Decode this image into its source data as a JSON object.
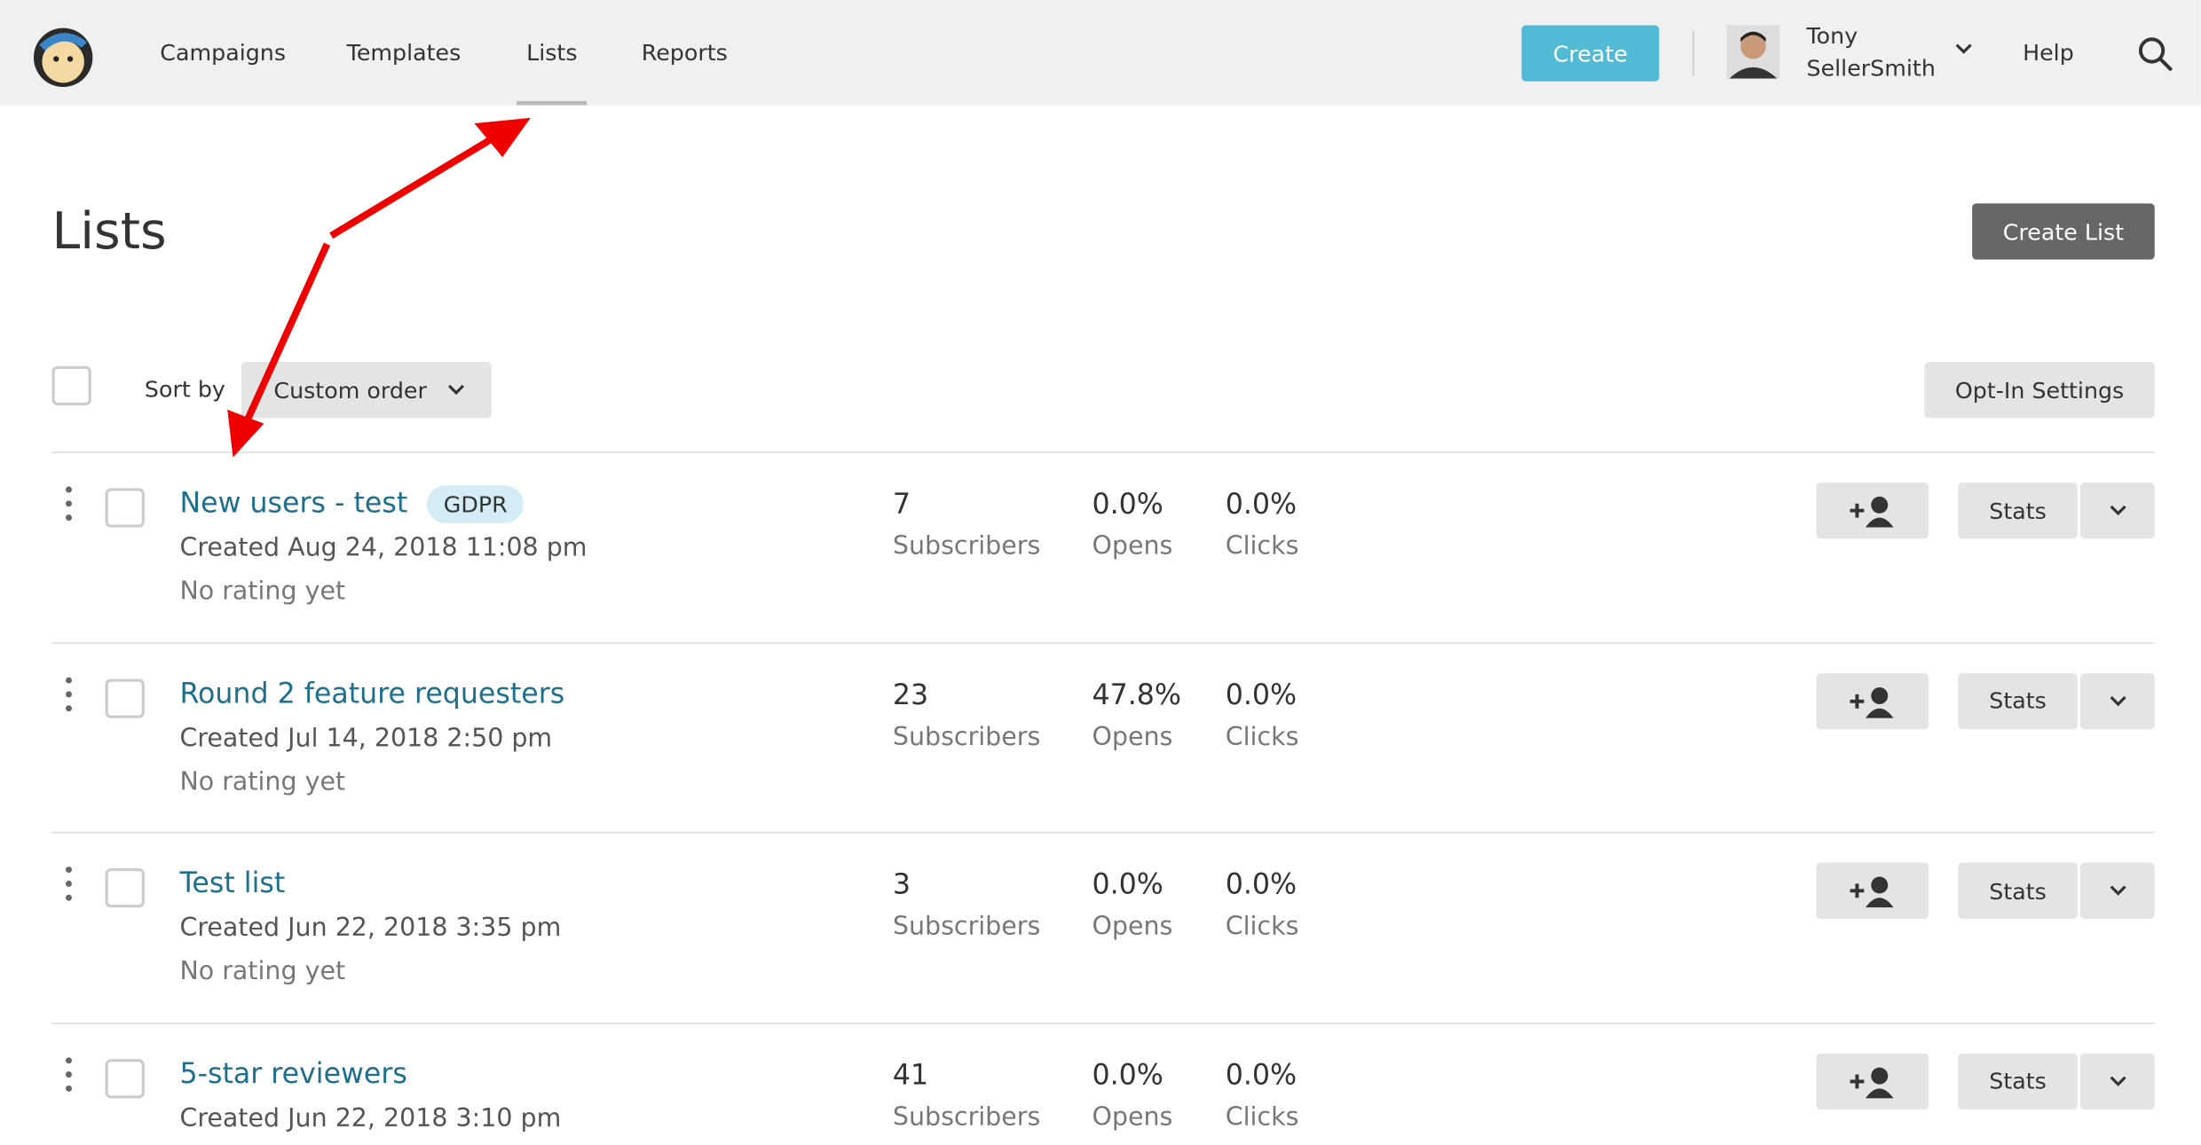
{
  "nav": {
    "items": [
      "Campaigns",
      "Templates",
      "Lists",
      "Reports"
    ],
    "create": "Create",
    "user_first": "Tony",
    "user_last": "SellerSmith",
    "help": "Help"
  },
  "header": {
    "title": "Lists",
    "create_list": "Create List"
  },
  "toolbar": {
    "sort_label": "Sort by",
    "sort_value": "Custom order",
    "opt_in": "Opt-In Settings"
  },
  "lists": [
    {
      "name": "New users - test",
      "badge": "GDPR",
      "created": "Created Aug 24, 2018 11:08 pm",
      "rating": "No rating yet",
      "subscribers": "7",
      "subscribers_label": "Subscribers",
      "opens": "0.0%",
      "opens_label": "Opens",
      "clicks": "0.0%",
      "clicks_label": "Clicks",
      "stats": "Stats"
    },
    {
      "name": "Round 2 feature requesters",
      "created": "Created Jul 14, 2018 2:50 pm",
      "rating": "No rating yet",
      "subscribers": "23",
      "subscribers_label": "Subscribers",
      "opens": "47.8%",
      "opens_label": "Opens",
      "clicks": "0.0%",
      "clicks_label": "Clicks",
      "stats": "Stats"
    },
    {
      "name": "Test list",
      "created": "Created Jun 22, 2018 3:35 pm",
      "rating": "No rating yet",
      "subscribers": "3",
      "subscribers_label": "Subscribers",
      "opens": "0.0%",
      "opens_label": "Opens",
      "clicks": "0.0%",
      "clicks_label": "Clicks",
      "stats": "Stats"
    },
    {
      "name": "5-star reviewers",
      "created": "Created Jun 22, 2018 3:10 pm",
      "subscribers": "41",
      "subscribers_label": "Subscribers",
      "opens": "0.0%",
      "opens_label": "Opens",
      "clicks": "0.0%",
      "clicks_label": "Clicks",
      "stats": "Stats"
    }
  ]
}
